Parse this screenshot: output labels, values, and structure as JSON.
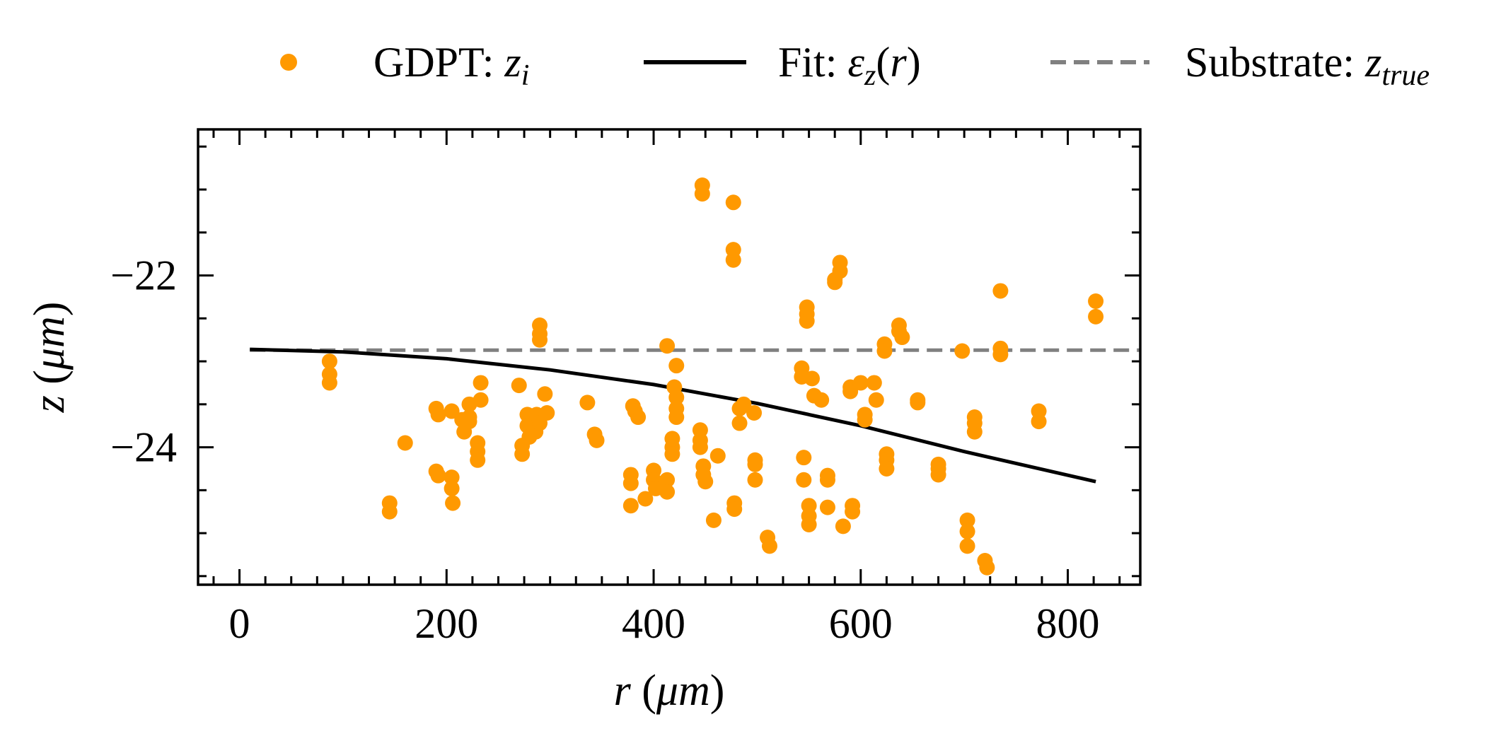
{
  "legend": {
    "placement": "top, above plot",
    "items": [
      {
        "label": "GDPT: ",
        "math": "z",
        "sub": "i",
        "marker": "dot",
        "color": "#ff9900"
      },
      {
        "label": "Fit: ",
        "math": "ε",
        "sub": "z",
        "tail": "(r)",
        "marker": "solid-line",
        "color": "#000000"
      },
      {
        "label": "Substrate: ",
        "math": "z",
        "sub": "true",
        "marker": "dashed-line",
        "color": "#808080"
      }
    ]
  },
  "chart_data": {
    "type": "scatter",
    "title": "",
    "xlabel": "r (μm)",
    "ylabel": "z (μm)",
    "xlim": [
      -40,
      870
    ],
    "ylim": [
      -25.6,
      -20.3
    ],
    "xticks": [
      0,
      200,
      400,
      600,
      800
    ],
    "yticks": [
      -22,
      -24
    ],
    "xtick_labels": [
      "0",
      "200",
      "400",
      "600",
      "800"
    ],
    "ytick_labels": [
      "−22",
      "−24"
    ],
    "grid": false,
    "series": [
      {
        "name": "GDPT: z_i",
        "kind": "scatter",
        "color": "#ff9900",
        "points": [
          [
            87,
            -23.0
          ],
          [
            87,
            -23.15
          ],
          [
            87,
            -23.25
          ],
          [
            145,
            -24.65
          ],
          [
            145,
            -24.75
          ],
          [
            160,
            -23.95
          ],
          [
            190,
            -23.55
          ],
          [
            192,
            -23.62
          ],
          [
            190,
            -24.28
          ],
          [
            192,
            -24.33
          ],
          [
            205,
            -23.58
          ],
          [
            205,
            -24.35
          ],
          [
            205,
            -24.48
          ],
          [
            206,
            -24.65
          ],
          [
            215,
            -23.68
          ],
          [
            217,
            -23.82
          ],
          [
            222,
            -23.5
          ],
          [
            222,
            -23.65
          ],
          [
            222,
            -23.7
          ],
          [
            230,
            -23.95
          ],
          [
            230,
            -24.05
          ],
          [
            230,
            -24.15
          ],
          [
            233,
            -23.45
          ],
          [
            233,
            -23.25
          ],
          [
            270,
            -23.28
          ],
          [
            273,
            -23.98
          ],
          [
            273,
            -24.08
          ],
          [
            278,
            -23.62
          ],
          [
            278,
            -23.75
          ],
          [
            280,
            -23.88
          ],
          [
            286,
            -23.82
          ],
          [
            287,
            -23.62
          ],
          [
            290,
            -23.72
          ],
          [
            290,
            -22.58
          ],
          [
            290,
            -22.68
          ],
          [
            290,
            -22.75
          ],
          [
            295,
            -23.38
          ],
          [
            297,
            -23.6
          ],
          [
            336,
            -23.48
          ],
          [
            343,
            -23.85
          ],
          [
            345,
            -23.92
          ],
          [
            378,
            -24.32
          ],
          [
            378,
            -24.42
          ],
          [
            378,
            -24.68
          ],
          [
            380,
            -23.52
          ],
          [
            382,
            -23.58
          ],
          [
            385,
            -23.65
          ],
          [
            392,
            -24.6
          ],
          [
            400,
            -24.27
          ],
          [
            400,
            -24.38
          ],
          [
            402,
            -24.48
          ],
          [
            413,
            -22.82
          ],
          [
            413,
            -24.38
          ],
          [
            413,
            -24.52
          ],
          [
            418,
            -24.0
          ],
          [
            418,
            -23.9
          ],
          [
            418,
            -24.08
          ],
          [
            420,
            -23.3
          ],
          [
            422,
            -23.42
          ],
          [
            422,
            -23.55
          ],
          [
            422,
            -23.65
          ],
          [
            422,
            -23.05
          ],
          [
            445,
            -23.8
          ],
          [
            445,
            -23.92
          ],
          [
            445,
            -24.0
          ],
          [
            447,
            -20.95
          ],
          [
            447,
            -21.05
          ],
          [
            448,
            -24.22
          ],
          [
            448,
            -24.32
          ],
          [
            450,
            -24.4
          ],
          [
            458,
            -24.85
          ],
          [
            462,
            -24.1
          ],
          [
            477,
            -21.15
          ],
          [
            477,
            -21.7
          ],
          [
            477,
            -21.82
          ],
          [
            478,
            -24.65
          ],
          [
            478,
            -24.72
          ],
          [
            483,
            -23.55
          ],
          [
            483,
            -23.72
          ],
          [
            487,
            -23.5
          ],
          [
            497,
            -23.6
          ],
          [
            498,
            -24.15
          ],
          [
            498,
            -24.2
          ],
          [
            498,
            -24.38
          ],
          [
            510,
            -25.05
          ],
          [
            512,
            -25.15
          ],
          [
            543,
            -23.08
          ],
          [
            543,
            -23.18
          ],
          [
            545,
            -24.12
          ],
          [
            545,
            -24.38
          ],
          [
            548,
            -22.37
          ],
          [
            548,
            -22.45
          ],
          [
            548,
            -22.53
          ],
          [
            550,
            -24.68
          ],
          [
            550,
            -24.8
          ],
          [
            550,
            -24.9
          ],
          [
            553,
            -23.2
          ],
          [
            555,
            -23.4
          ],
          [
            562,
            -23.45
          ],
          [
            568,
            -24.33
          ],
          [
            568,
            -24.38
          ],
          [
            568,
            -24.7
          ],
          [
            575,
            -22.08
          ],
          [
            575,
            -22.05
          ],
          [
            580,
            -21.85
          ],
          [
            580,
            -21.95
          ],
          [
            583,
            -24.92
          ],
          [
            590,
            -23.3
          ],
          [
            590,
            -23.35
          ],
          [
            592,
            -24.68
          ],
          [
            592,
            -24.75
          ],
          [
            600,
            -23.25
          ],
          [
            604,
            -23.62
          ],
          [
            604,
            -23.68
          ],
          [
            613,
            -23.25
          ],
          [
            615,
            -23.45
          ],
          [
            623,
            -22.8
          ],
          [
            623,
            -22.88
          ],
          [
            625,
            -24.08
          ],
          [
            625,
            -24.15
          ],
          [
            625,
            -24.25
          ],
          [
            637,
            -22.58
          ],
          [
            637,
            -22.65
          ],
          [
            640,
            -22.72
          ],
          [
            655,
            -23.45
          ],
          [
            655,
            -23.48
          ],
          [
            675,
            -24.2
          ],
          [
            675,
            -24.25
          ],
          [
            675,
            -24.32
          ],
          [
            698,
            -22.88
          ],
          [
            703,
            -24.85
          ],
          [
            703,
            -24.98
          ],
          [
            703,
            -25.15
          ],
          [
            710,
            -23.65
          ],
          [
            710,
            -23.72
          ],
          [
            710,
            -23.82
          ],
          [
            720,
            -25.32
          ],
          [
            722,
            -25.4
          ],
          [
            735,
            -22.18
          ],
          [
            735,
            -22.85
          ],
          [
            735,
            -22.92
          ],
          [
            772,
            -23.58
          ],
          [
            772,
            -23.7
          ],
          [
            827,
            -22.3
          ],
          [
            827,
            -22.48
          ]
        ]
      },
      {
        "name": "Fit: ε_z(r)",
        "kind": "line",
        "color": "#000000",
        "x": [
          10,
          100,
          200,
          300,
          400,
          500,
          600,
          700,
          827
        ],
        "y": [
          -22.86,
          -22.89,
          -22.97,
          -23.1,
          -23.27,
          -23.49,
          -23.75,
          -24.05,
          -24.4
        ]
      },
      {
        "name": "Substrate: z_true",
        "kind": "hline",
        "color": "#808080",
        "y": -22.87,
        "x": [
          10,
          870
        ]
      }
    ]
  }
}
